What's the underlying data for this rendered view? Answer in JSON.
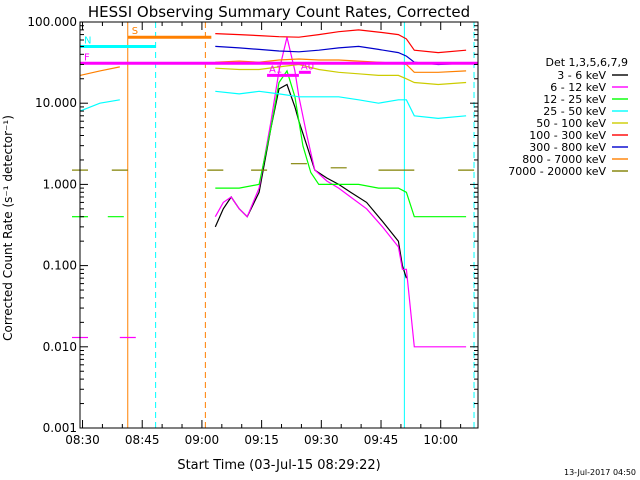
{
  "chart_data": {
    "type": "line",
    "title": "HESSI Observing Summary Count Rates, Corrected",
    "xlabel": "Start Time (03-Jul-15 08:29:22)",
    "ylabel": "Corrected Count Rate (s⁻¹ detector⁻¹)",
    "yscale": "log",
    "ylim": [
      0.001,
      100
    ],
    "xlim_minutes": [
      0,
      100
    ],
    "x_tick_labels": [
      "08:30",
      "08:45",
      "09:00",
      "09:15",
      "09:30",
      "09:45",
      "10:00"
    ],
    "y_tick_labels": [
      "100.000",
      "10.000",
      "1.000",
      "0.100",
      "0.010",
      "0.001"
    ],
    "y_tick_values": [
      100,
      10,
      1,
      0.1,
      0.01,
      0.001
    ],
    "legend_title": "Det 1,3,5,6,7,9",
    "legend_position": "right",
    "series": [
      {
        "name": "3 - 6 keV",
        "color": "#000000",
        "x": [
          34,
          36,
          38,
          40,
          42,
          45,
          48,
          50,
          52,
          54,
          55,
          57,
          59,
          62,
          65,
          68,
          72,
          76,
          80,
          81,
          82
        ],
        "y": [
          0.3,
          0.5,
          0.7,
          0.5,
          0.4,
          0.8,
          5,
          15,
          17,
          9,
          6,
          3,
          1.5,
          1.2,
          1.0,
          0.8,
          0.6,
          0.35,
          0.2,
          0.1,
          0.07
        ]
      },
      {
        "name": "6 - 12 keV",
        "color": "#ff00ff",
        "x": [
          0,
          12,
          34,
          36,
          38,
          40,
          42,
          45,
          48,
          50,
          52,
          54,
          55,
          57,
          59,
          62,
          65,
          68,
          72,
          76,
          80,
          81,
          82,
          84,
          90,
          97
        ],
        "y": [
          0.013,
          0.013,
          0.4,
          0.6,
          0.7,
          0.5,
          0.4,
          0.9,
          6,
          25,
          65,
          25,
          12,
          4,
          1.5,
          1.1,
          0.9,
          0.7,
          0.5,
          0.3,
          0.17,
          0.09,
          0.09,
          0.01,
          0.01,
          0.01
        ]
      },
      {
        "name": "12 - 25 keV",
        "color": "#00ff00",
        "x": [
          0,
          9,
          34,
          40,
          45,
          48,
          50,
          52,
          54,
          56,
          58,
          60,
          65,
          70,
          75,
          80,
          82,
          84,
          90,
          97
        ],
        "y": [
          0.4,
          0.4,
          0.9,
          0.9,
          1.0,
          5,
          18,
          25,
          12,
          3,
          1.4,
          1.0,
          1.0,
          1.0,
          0.9,
          0.9,
          0.8,
          0.4,
          0.4,
          0.4
        ]
      },
      {
        "name": "25 - 50 keV",
        "color": "#00ffff",
        "x": [
          0,
          5,
          10,
          34,
          40,
          45,
          50,
          55,
          60,
          65,
          70,
          75,
          80,
          82,
          84,
          90,
          97
        ],
        "y": [
          8,
          10,
          11,
          14,
          13,
          14,
          13,
          12,
          12,
          12,
          11,
          10,
          11,
          11,
          7,
          6.5,
          7
        ]
      },
      {
        "name": "50 - 100 keV",
        "color": "#cccc00",
        "x": [
          34,
          40,
          45,
          50,
          55,
          60,
          65,
          70,
          75,
          80,
          82,
          84,
          90,
          97
        ],
        "y": [
          27,
          26,
          26,
          28,
          30,
          26,
          24,
          23,
          22,
          22,
          20,
          18,
          17,
          18
        ]
      },
      {
        "name": "100 - 300 keV",
        "color": "#ff0000",
        "x": [
          34,
          40,
          45,
          50,
          55,
          60,
          65,
          70,
          75,
          80,
          82,
          84,
          90,
          97
        ],
        "y": [
          72,
          70,
          68,
          66,
          65,
          70,
          76,
          80,
          75,
          70,
          62,
          45,
          42,
          45
        ]
      },
      {
        "name": "300 - 800 keV",
        "color": "#0000cc",
        "x": [
          34,
          40,
          45,
          50,
          55,
          60,
          65,
          70,
          75,
          80,
          82,
          84,
          90,
          97
        ],
        "y": [
          50,
          48,
          46,
          44,
          43,
          45,
          48,
          50,
          46,
          42,
          38,
          32,
          30,
          31
        ]
      },
      {
        "name": "800 - 7000 keV",
        "color": "#ff8000",
        "x": [
          0,
          5,
          10,
          34,
          40,
          45,
          50,
          55,
          60,
          65,
          70,
          75,
          80,
          82,
          84,
          90,
          97
        ],
        "y": [
          22,
          25,
          28,
          32,
          33,
          32,
          34,
          35,
          34,
          34,
          33,
          32,
          31,
          30,
          24,
          24,
          25
        ]
      },
      {
        "name": "7000 - 20000 keV",
        "color": "#808000",
        "x": [
          0,
          10,
          34,
          45,
          55,
          65,
          75,
          82,
          84,
          97
        ],
        "y": [
          1.5,
          1.5,
          1.5,
          1.5,
          1.8,
          1.6,
          1.5,
          1.5,
          1.5,
          1.5
        ]
      }
    ],
    "flags": [
      {
        "label": "S",
        "color": "#ff8000",
        "y": 65,
        "x_start": 12,
        "x_end": 33
      },
      {
        "label": "N",
        "color": "#00ffff",
        "y": 50,
        "x_start": 0,
        "x_end": 19
      },
      {
        "label": "F",
        "color": "#ff00ff",
        "y": 31,
        "x_start": 0,
        "x_end": 100
      },
      {
        "label": "A1",
        "color": "#ff00ff",
        "y": 22,
        "x_start": 47,
        "x_end": 55
      },
      {
        "label": "A0",
        "color": "#ff00ff",
        "y": 24,
        "x_start": 55,
        "x_end": 58
      }
    ],
    "vertical_markers": [
      {
        "x": 12,
        "color": "#ff8000",
        "style": "solid"
      },
      {
        "x": 19,
        "color": "#00ffff",
        "style": "dashed"
      },
      {
        "x": 31.5,
        "color": "#ff8000",
        "style": "dashed"
      },
      {
        "x": 81.5,
        "color": "#00ffff",
        "style": "solid"
      },
      {
        "x": 99,
        "color": "#00ffff",
        "style": "dashed"
      }
    ]
  },
  "footer": {
    "timestamp": "13-Jul-2017 04:50"
  }
}
